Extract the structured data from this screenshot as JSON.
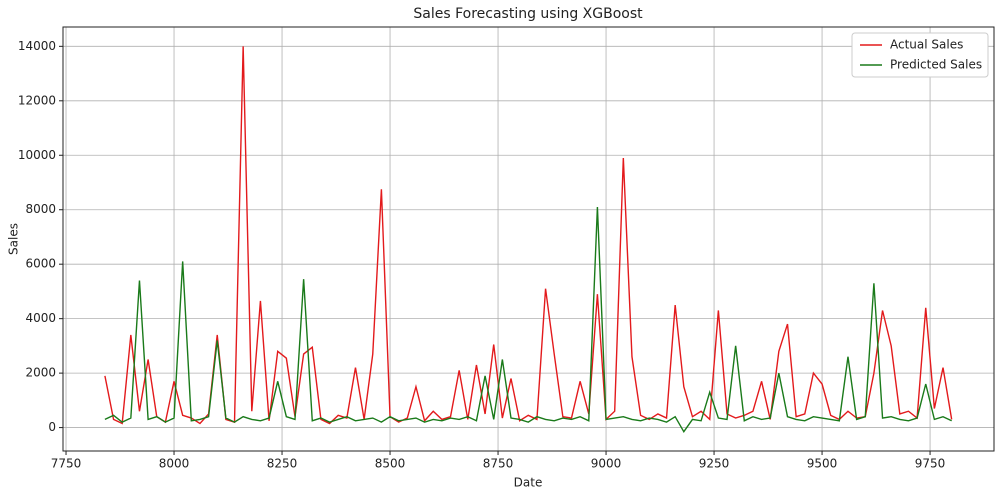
{
  "chart_data": {
    "type": "line",
    "title": "Sales Forecasting using XGBoost",
    "xlabel": "Date",
    "ylabel": "Sales",
    "x": [
      7840,
      7860,
      7880,
      7900,
      7920,
      7940,
      7960,
      7980,
      8000,
      8020,
      8040,
      8060,
      8080,
      8100,
      8120,
      8140,
      8160,
      8180,
      8200,
      8220,
      8240,
      8260,
      8280,
      8300,
      8320,
      8340,
      8360,
      8380,
      8400,
      8420,
      8440,
      8460,
      8480,
      8500,
      8520,
      8540,
      8560,
      8580,
      8600,
      8620,
      8640,
      8660,
      8680,
      8700,
      8720,
      8740,
      8760,
      8780,
      8800,
      8820,
      8840,
      8860,
      8880,
      8900,
      8920,
      8940,
      8960,
      8980,
      9000,
      9020,
      9040,
      9060,
      9080,
      9100,
      9120,
      9140,
      9160,
      9180,
      9200,
      9220,
      9240,
      9260,
      9280,
      9300,
      9320,
      9340,
      9360,
      9380,
      9400,
      9420,
      9440,
      9460,
      9480,
      9500,
      9520,
      9540,
      9560,
      9580,
      9600,
      9620,
      9640,
      9660,
      9680,
      9700,
      9720,
      9740,
      9760,
      9780,
      9800
    ],
    "series": [
      {
        "name": "Actual Sales",
        "color": "#e31a1c",
        "values": [
          1900,
          300,
          150,
          3400,
          600,
          2500,
          400,
          200,
          1700,
          450,
          350,
          150,
          500,
          3400,
          300,
          200,
          14000,
          600,
          4650,
          250,
          2800,
          2550,
          400,
          2700,
          2950,
          300,
          150,
          450,
          350,
          2200,
          300,
          2700,
          8750,
          400,
          200,
          350,
          1500,
          250,
          600,
          300,
          400,
          2100,
          300,
          2300,
          500,
          3050,
          350,
          1800,
          250,
          450,
          300,
          5100,
          2700,
          400,
          350,
          1700,
          500,
          4900,
          300,
          600,
          9900,
          2600,
          450,
          300,
          500,
          350,
          4500,
          1500,
          400,
          600,
          300,
          4300,
          500,
          350,
          450,
          600,
          1700,
          300,
          2800,
          3800,
          400,
          500,
          2000,
          1600,
          450,
          300,
          600,
          350,
          400,
          2000,
          4300,
          3000,
          500,
          600,
          350,
          4400,
          700,
          2200,
          300
        ]
      },
      {
        "name": "Predicted Sales",
        "color": "#1a7a1a",
        "values": [
          300,
          450,
          200,
          350,
          5400,
          300,
          400,
          200,
          350,
          6100,
          250,
          300,
          400,
          3200,
          350,
          200,
          400,
          300,
          250,
          350,
          1700,
          400,
          300,
          5450,
          250,
          350,
          200,
          300,
          400,
          250,
          300,
          350,
          200,
          400,
          250,
          300,
          350,
          200,
          300,
          250,
          350,
          300,
          400,
          250,
          1900,
          300,
          2500,
          350,
          300,
          200,
          400,
          300,
          250,
          350,
          300,
          400,
          250,
          8100,
          300,
          350,
          400,
          300,
          250,
          350,
          300,
          200,
          400,
          -150,
          300,
          250,
          1300,
          350,
          300,
          3000,
          250,
          400,
          300,
          350,
          2000,
          400,
          300,
          250,
          400,
          350,
          300,
          250,
          2600,
          300,
          400,
          5300,
          350,
          400,
          300,
          250,
          350,
          1600,
          300,
          400,
          250
        ]
      }
    ],
    "xlim": [
      7743,
      9898
    ],
    "ylim": [
      -860,
      14710
    ],
    "xticks": [
      7750,
      8000,
      8250,
      8500,
      8750,
      9000,
      9250,
      9500,
      9750
    ],
    "yticks": [
      0,
      2000,
      4000,
      6000,
      8000,
      10000,
      12000,
      14000
    ],
    "grid": true,
    "legend": "upper right"
  }
}
